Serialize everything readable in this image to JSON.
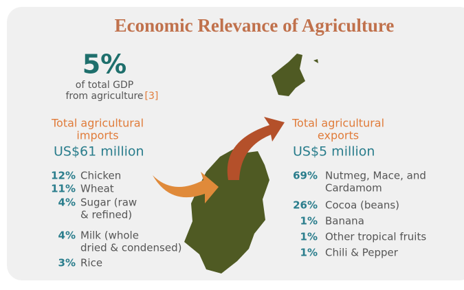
{
  "title": "Economic Relevance of Agriculture",
  "gdp": {
    "value": "5%",
    "lines": [
      "of total GDP",
      "from agriculture"
    ],
    "ref": "[3]"
  },
  "imports": {
    "label": [
      "Total agricultural",
      "imports"
    ],
    "amount": "US$61 million",
    "items": [
      {
        "pct": "12%",
        "name": [
          "Chicken"
        ]
      },
      {
        "pct": "11%",
        "name": [
          "Wheat"
        ]
      },
      {
        "pct": "4%",
        "name": [
          "Sugar (raw",
          "& refined)"
        ]
      },
      {
        "pct": "4%",
        "name": [
          "Milk (whole",
          "dried & condensed)"
        ]
      },
      {
        "pct": "3%",
        "name": [
          "Rice"
        ]
      }
    ]
  },
  "exports": {
    "label": [
      "Total agricultural",
      "exports"
    ],
    "amount": "US$5 million",
    "items": [
      {
        "pct": "69%",
        "name": [
          "Nutmeg, Mace, and",
          "Cardamom"
        ]
      },
      {
        "pct": "26%",
        "name": [
          "Cocoa (beans)"
        ]
      },
      {
        "pct": "1%",
        "name": [
          "Banana"
        ]
      },
      {
        "pct": "1%",
        "name": [
          "Other tropical fruits"
        ]
      },
      {
        "pct": "1%",
        "name": [
          "Chili & Pepper"
        ]
      }
    ]
  }
}
